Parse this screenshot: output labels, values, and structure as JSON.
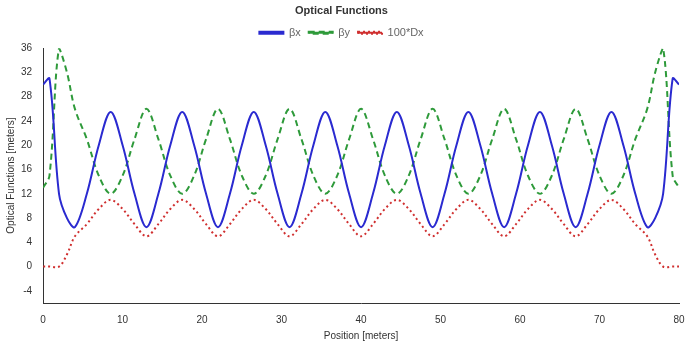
{
  "chart_data": {
    "type": "line",
    "title": "Optical Functions",
    "x_label": "Position [meters]",
    "y_label": "Optical Functions [meters]",
    "x": [
      0,
      0.8,
      2,
      3,
      4,
      5.5,
      7,
      8.5,
      10,
      11.5,
      13,
      14.5,
      16,
      17.5,
      19,
      20.5,
      22,
      23.5,
      25,
      26.5,
      28,
      29.5,
      31,
      32.5,
      34,
      35.5,
      37,
      38.5,
      40,
      41.5,
      43,
      44.5,
      46,
      47.5,
      49,
      50.5,
      52,
      53.5,
      55,
      56.5,
      58,
      59.5,
      61,
      62.5,
      64,
      65.5,
      67,
      68.5,
      70,
      71.5,
      73,
      74.5,
      76,
      77,
      78,
      79.2,
      80
    ],
    "series": [
      {
        "name": "βx",
        "color": "#2a2ad0",
        "line_style": "solid",
        "values": [
          30,
          31,
          12,
          8,
          6.5,
          12,
          20,
          25.5,
          20,
          12,
          6.5,
          12,
          20,
          25.5,
          20,
          12,
          6.5,
          12,
          20,
          25.5,
          20,
          12,
          6.5,
          12,
          20,
          25.5,
          20,
          12,
          6.5,
          12,
          20,
          25.5,
          20,
          12,
          6.5,
          12,
          20,
          25.5,
          20,
          12,
          6.5,
          12,
          20,
          25.5,
          20,
          12,
          6.5,
          12,
          20,
          25.5,
          20,
          12,
          6.5,
          8,
          12,
          31,
          30
        ]
      },
      {
        "name": "βy",
        "color": "#2e9a3a",
        "line_style": "dashed",
        "values": [
          13,
          15,
          36,
          32,
          26,
          21,
          15,
          12,
          15,
          21,
          26,
          21,
          15,
          12,
          15,
          21,
          26,
          21,
          15,
          12,
          15,
          21,
          26,
          21,
          15,
          12,
          15,
          21,
          26,
          21,
          15,
          12,
          15,
          21,
          26,
          21,
          15,
          12,
          15,
          21,
          26,
          21,
          15,
          12,
          15,
          21,
          26,
          21,
          15,
          12,
          15,
          21,
          26,
          32,
          36,
          15,
          13
        ]
      },
      {
        "name": "100*Dx",
        "color": "#d03030",
        "line_style": "dotted",
        "values": [
          0,
          0,
          0,
          2,
          5,
          7,
          9.5,
          11,
          9.5,
          7,
          5,
          7,
          9.5,
          11,
          9.5,
          7,
          5,
          7,
          9.5,
          11,
          9.5,
          7,
          5,
          7,
          9.5,
          11,
          9.5,
          7,
          5,
          7,
          9.5,
          11,
          9.5,
          7,
          5,
          7,
          9.5,
          11,
          9.5,
          7,
          5,
          7,
          9.5,
          11,
          9.5,
          7,
          5,
          7,
          9.5,
          11,
          9.5,
          7,
          5,
          2,
          0,
          0,
          0
        ]
      }
    ],
    "xlim": [
      0,
      80
    ],
    "xticks": [
      0,
      10,
      20,
      30,
      40,
      50,
      60,
      70,
      80
    ],
    "ylim": [
      -6,
      36
    ],
    "yticks": [
      -4,
      0,
      4,
      8,
      12,
      16,
      20,
      24,
      28,
      32,
      36
    ],
    "grid": false,
    "legend": "top"
  }
}
